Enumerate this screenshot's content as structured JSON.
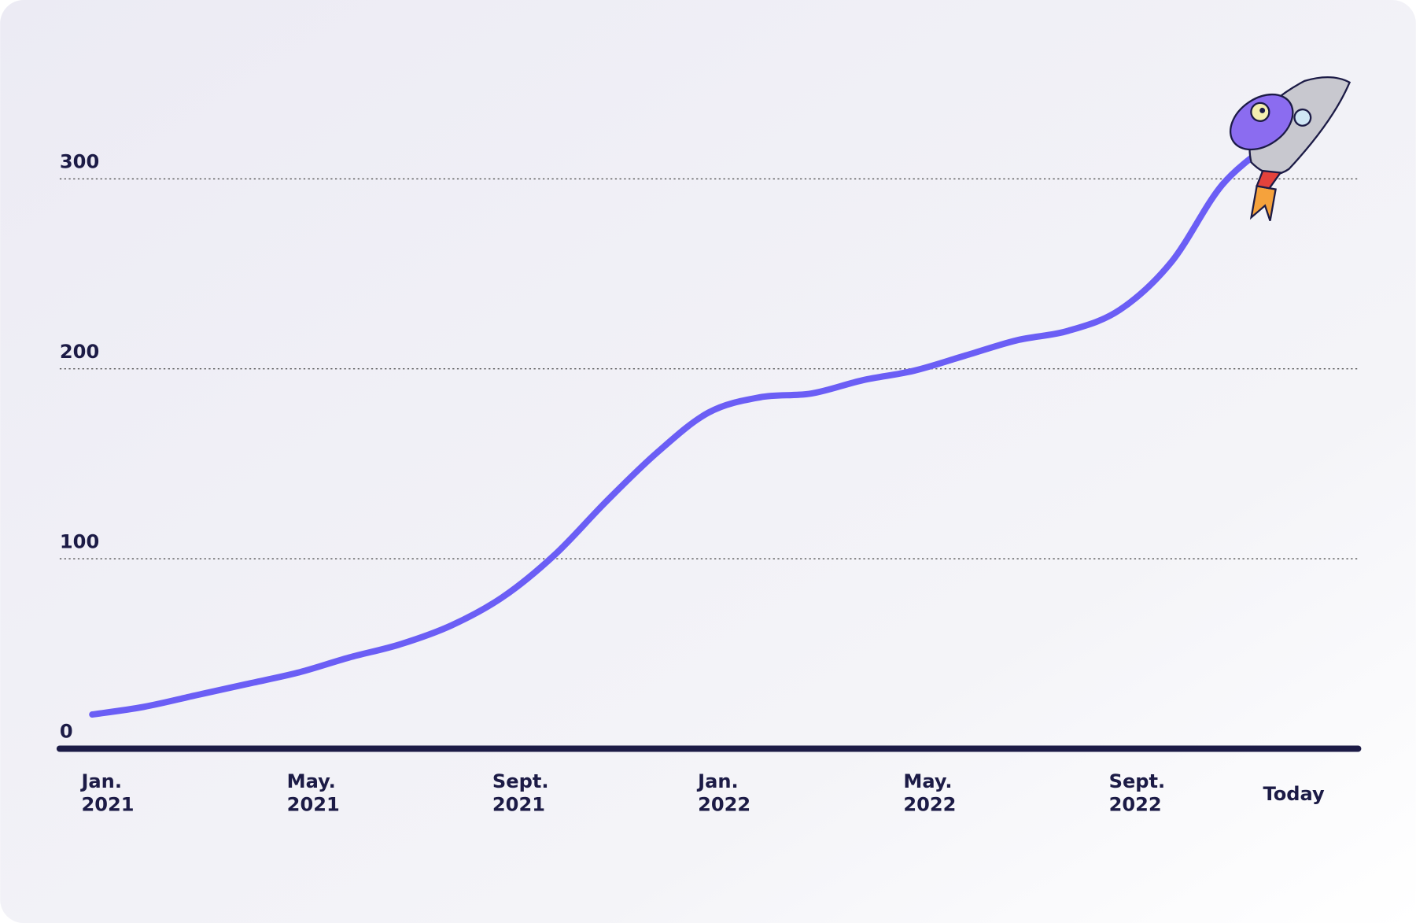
{
  "chart_data": {
    "type": "line",
    "x": [
      "2021-01",
      "2021-02",
      "2021-03",
      "2021-04",
      "2021-05",
      "2021-06",
      "2021-07",
      "2021-08",
      "2021-09",
      "2021-10",
      "2021-11",
      "2021-12",
      "2022-01",
      "2022-02",
      "2022-03",
      "2022-04",
      "2022-05",
      "2022-06",
      "2022-07",
      "2022-08",
      "2022-09",
      "2022-10",
      "2022-11",
      "2022-12"
    ],
    "series": [
      {
        "color": "#6b5ef5",
        "values": [
          18,
          22,
          28,
          34,
          40,
          48,
          55,
          65,
          80,
          102,
          130,
          156,
          177,
          185,
          187,
          194,
          199,
          207,
          215,
          220,
          231,
          256,
          297,
          320
        ]
      }
    ],
    "ylim": [
      0,
      300
    ],
    "yticks": [
      0,
      100,
      200,
      300
    ],
    "xticks": [
      {
        "value": "2021-01",
        "label": "Jan. 2021"
      },
      {
        "value": "2021-05",
        "label": "May. 2021"
      },
      {
        "value": "2021-09",
        "label": "Sept. 2021"
      },
      {
        "value": "2022-01",
        "label": "Jan. 2022"
      },
      {
        "value": "2022-05",
        "label": "May. 2022"
      },
      {
        "value": "2022-09",
        "label": "Sept. 2022"
      },
      {
        "value": "2022-12",
        "label": "Today"
      }
    ],
    "grid": true
  }
}
